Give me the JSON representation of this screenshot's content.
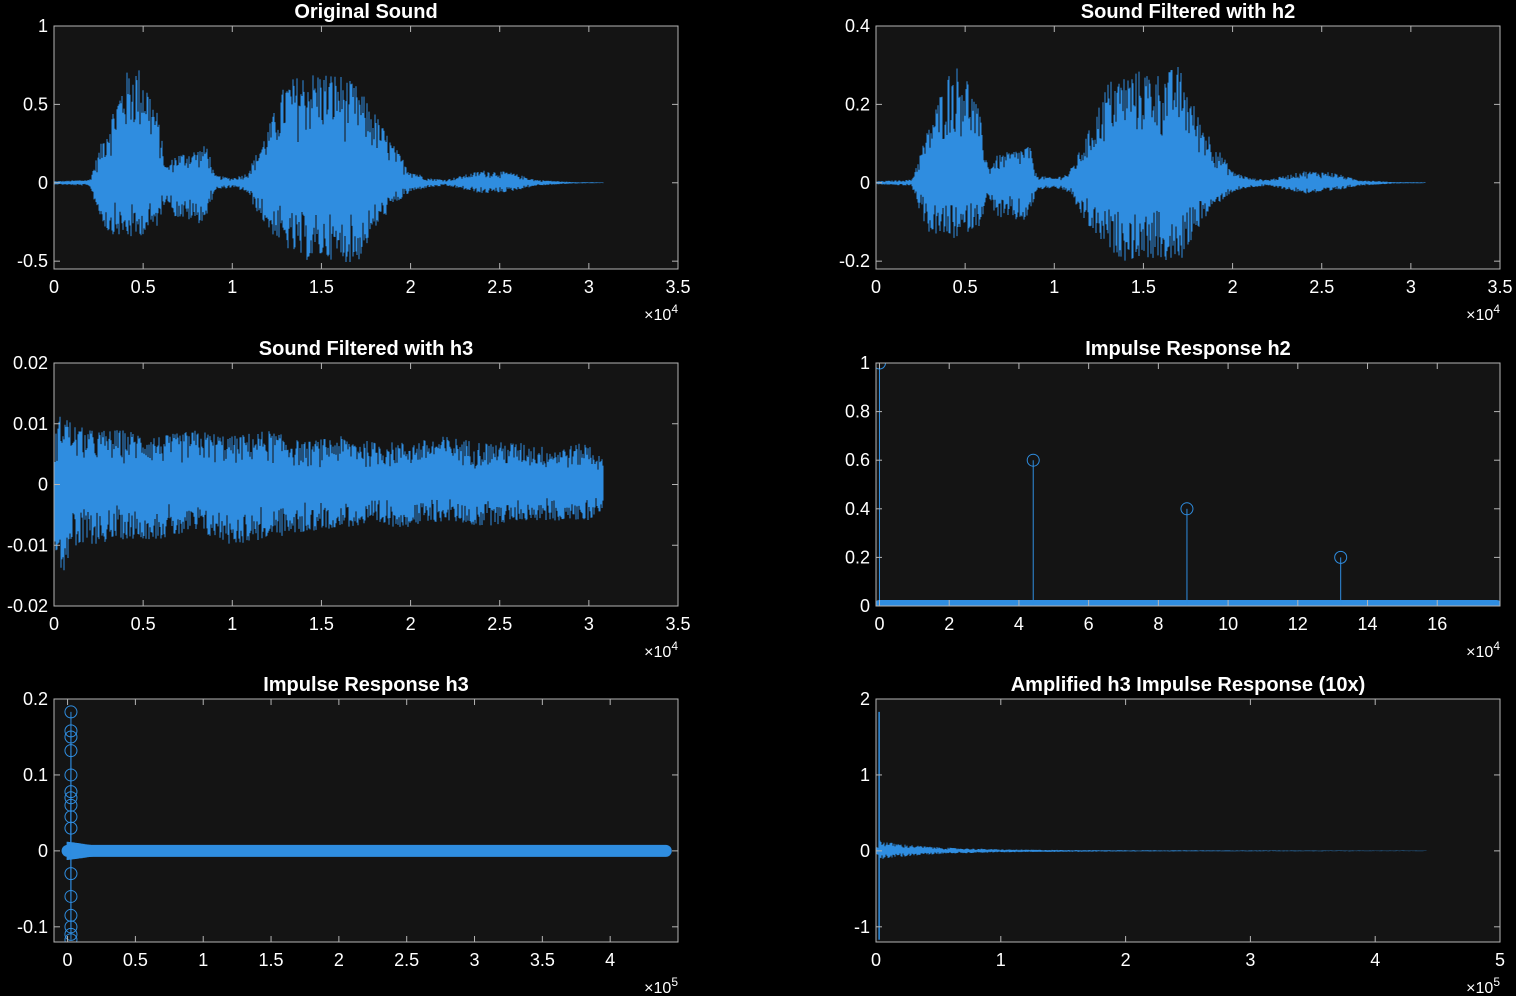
{
  "figure": {
    "background": "#000000",
    "axes_background": "#141414",
    "axes_color": "#b4b4b4",
    "line_color": "#2f8de0"
  },
  "chart_data": [
    {
      "type": "line",
      "title": "Original Sound",
      "xlabel": "",
      "ylabel": "",
      "xlim": [
        0,
        35000
      ],
      "ylim": [
        -0.55,
        1
      ],
      "x_ticks": [
        0,
        5000,
        10000,
        15000,
        20000,
        25000,
        30000,
        35000
      ],
      "x_tick_labels": [
        "0",
        "0.5",
        "1",
        "1.5",
        "2",
        "2.5",
        "3",
        "3.5"
      ],
      "x_exponent_label": "×10",
      "x_exponent": "4",
      "y_ticks": [
        -0.5,
        0,
        0.5,
        1
      ],
      "y_tick_labels": [
        "-0.5",
        "0",
        "0.5",
        "1"
      ],
      "grid": false,
      "series": [
        {
          "kind": "waveform",
          "x_end": 30800,
          "envelope_x": [
            0,
            2000,
            2500,
            3000,
            4000,
            4500,
            5000,
            5800,
            6300,
            6800,
            7500,
            8200,
            8600,
            9000,
            10000,
            10800,
            11200,
            12000,
            13000,
            14000,
            15000,
            16000,
            17000,
            18000,
            19000,
            20000,
            21000,
            22000,
            24000,
            25500,
            27000,
            29000,
            30800
          ],
          "envelope_upper": [
            0.01,
            0.02,
            0.2,
            0.38,
            0.7,
            0.76,
            0.72,
            0.45,
            0.1,
            0.18,
            0.2,
            0.22,
            0.25,
            0.05,
            0.03,
            0.06,
            0.15,
            0.35,
            0.65,
            0.7,
            0.72,
            0.7,
            0.62,
            0.45,
            0.25,
            0.08,
            0.03,
            0.02,
            0.08,
            0.07,
            0.02,
            0.005,
            0.002
          ],
          "envelope_lower": [
            -0.01,
            -0.02,
            -0.2,
            -0.32,
            -0.35,
            -0.36,
            -0.33,
            -0.28,
            -0.1,
            -0.22,
            -0.24,
            -0.26,
            -0.22,
            -0.05,
            -0.03,
            -0.06,
            -0.15,
            -0.3,
            -0.42,
            -0.5,
            -0.48,
            -0.5,
            -0.52,
            -0.3,
            -0.15,
            -0.06,
            -0.03,
            -0.02,
            -0.07,
            -0.06,
            -0.02,
            -0.005,
            -0.002
          ]
        }
      ]
    },
    {
      "type": "line",
      "title": "Sound Filtered with h2",
      "xlabel": "",
      "ylabel": "",
      "xlim": [
        0,
        35000
      ],
      "ylim": [
        -0.22,
        0.4
      ],
      "x_ticks": [
        0,
        5000,
        10000,
        15000,
        20000,
        25000,
        30000,
        35000
      ],
      "x_tick_labels": [
        "0",
        "0.5",
        "1",
        "1.5",
        "2",
        "2.5",
        "3",
        "3.5"
      ],
      "x_exponent_label": "×10",
      "x_exponent": "4",
      "y_ticks": [
        -0.2,
        0,
        0.2,
        0.4
      ],
      "y_tick_labels": [
        "-0.2",
        "0",
        "0.2",
        "0.4"
      ],
      "grid": false,
      "series": [
        {
          "kind": "waveform",
          "x_end": 30800,
          "envelope_x": [
            0,
            2000,
            2500,
            3000,
            4000,
            4500,
            5000,
            5800,
            6300,
            6800,
            7500,
            8200,
            8600,
            9000,
            10000,
            10800,
            11200,
            12000,
            13000,
            14000,
            15000,
            16000,
            17000,
            18000,
            19000,
            20000,
            21000,
            22000,
            24000,
            25500,
            27000,
            29000,
            30800
          ],
          "envelope_upper": [
            0.004,
            0.008,
            0.08,
            0.15,
            0.28,
            0.3,
            0.29,
            0.18,
            0.04,
            0.07,
            0.08,
            0.09,
            0.1,
            0.02,
            0.012,
            0.025,
            0.06,
            0.14,
            0.26,
            0.28,
            0.29,
            0.28,
            0.3,
            0.18,
            0.1,
            0.03,
            0.012,
            0.008,
            0.03,
            0.028,
            0.008,
            0.002,
            0.001
          ],
          "envelope_lower": [
            -0.004,
            -0.008,
            -0.08,
            -0.13,
            -0.14,
            -0.145,
            -0.13,
            -0.11,
            -0.04,
            -0.09,
            -0.095,
            -0.1,
            -0.09,
            -0.02,
            -0.012,
            -0.025,
            -0.06,
            -0.12,
            -0.17,
            -0.2,
            -0.19,
            -0.2,
            -0.21,
            -0.12,
            -0.06,
            -0.024,
            -0.012,
            -0.008,
            -0.028,
            -0.024,
            -0.008,
            -0.002,
            -0.001
          ]
        }
      ]
    },
    {
      "type": "line",
      "title": "Sound Filtered with h3",
      "xlabel": "",
      "ylabel": "",
      "xlim": [
        0,
        35000
      ],
      "ylim": [
        -0.02,
        0.02
      ],
      "x_ticks": [
        0,
        5000,
        10000,
        15000,
        20000,
        25000,
        30000,
        35000
      ],
      "x_tick_labels": [
        "0",
        "0.5",
        "1",
        "1.5",
        "2",
        "2.5",
        "3",
        "3.5"
      ],
      "x_exponent_label": "×10",
      "x_exponent": "4",
      "y_ticks": [
        -0.02,
        -0.01,
        0,
        0.01,
        0.02
      ],
      "y_tick_labels": [
        "-0.02",
        "-0.01",
        "0",
        "0.01",
        "0.02"
      ],
      "grid": false,
      "series": [
        {
          "kind": "waveform",
          "x_end": 30800,
          "envelope_x": [
            0,
            500,
            1000,
            2000,
            4000,
            6000,
            8000,
            10000,
            12000,
            14000,
            16000,
            18000,
            20000,
            22000,
            24000,
            26000,
            28000,
            30000,
            30800
          ],
          "envelope_upper": [
            0.008,
            0.013,
            0.01,
            0.009,
            0.009,
            0.008,
            0.009,
            0.008,
            0.009,
            0.007,
            0.008,
            0.007,
            0.007,
            0.008,
            0.007,
            0.007,
            0.006,
            0.007,
            0.004
          ],
          "envelope_lower": [
            -0.01,
            -0.015,
            -0.011,
            -0.01,
            -0.009,
            -0.009,
            -0.008,
            -0.01,
            -0.009,
            -0.008,
            -0.007,
            -0.007,
            -0.007,
            -0.006,
            -0.007,
            -0.006,
            -0.006,
            -0.006,
            -0.004
          ]
        }
      ]
    },
    {
      "type": "stem",
      "title": "Impulse Response h2",
      "xlabel": "",
      "ylabel": "",
      "xlim": [
        -1000,
        178000
      ],
      "ylim": [
        0,
        1
      ],
      "x_ticks": [
        0,
        20000,
        40000,
        60000,
        80000,
        100000,
        120000,
        140000,
        160000
      ],
      "x_tick_labels": [
        "0",
        "2",
        "4",
        "6",
        "8",
        "10",
        "12",
        "14",
        "16"
      ],
      "x_exponent_label": "×10",
      "x_exponent": "4",
      "y_ticks": [
        0,
        0.2,
        0.4,
        0.6,
        0.8,
        1
      ],
      "y_tick_labels": [
        "0",
        "0.2",
        "0.4",
        "0.6",
        "0.8",
        "1"
      ],
      "grid": false,
      "series": [
        {
          "kind": "stem",
          "x": [
            0,
            44100,
            88200,
            132300
          ],
          "y": [
            1,
            0.6,
            0.4,
            0.2
          ],
          "zero_band_x": [
            0,
            177000
          ]
        }
      ]
    },
    {
      "type": "stem",
      "title": "Impulse Response h3",
      "xlabel": "",
      "ylabel": "",
      "xlim": [
        -10000,
        450000
      ],
      "ylim": [
        -0.12,
        0.2
      ],
      "x_ticks": [
        0,
        50000,
        100000,
        150000,
        200000,
        250000,
        300000,
        350000,
        400000
      ],
      "x_tick_labels": [
        "0",
        "0.5",
        "1",
        "1.5",
        "2",
        "2.5",
        "3",
        "3.5",
        "4"
      ],
      "x_exponent_label": "×10",
      "x_exponent": "5",
      "y_ticks": [
        -0.1,
        0,
        0.1,
        0.2
      ],
      "y_tick_labels": [
        "-0.1",
        "0",
        "0.1",
        "0.2"
      ],
      "grid": false,
      "series": [
        {
          "kind": "stem",
          "x": [
            2500,
            2500,
            2500,
            2500,
            2500,
            2500,
            2500,
            2500,
            2500,
            2500,
            2500,
            2500,
            2500,
            2500,
            2500,
            2500
          ],
          "y": [
            0.183,
            0.158,
            0.15,
            0.132,
            0.1,
            0.078,
            0.07,
            0.06,
            0.045,
            0.03,
            -0.03,
            -0.06,
            -0.085,
            -0.1,
            -0.11,
            -0.117
          ],
          "zero_band_x": [
            0,
            441000
          ],
          "decay_x": [
            0,
            5000,
            20000,
            60000,
            120000,
            441000
          ],
          "decay_amp": [
            0.012,
            0.011,
            0.007,
            0.005,
            0.004,
            0.003
          ]
        }
      ]
    },
    {
      "type": "line",
      "title": "Amplified h3 Impulse Response (10x)",
      "xlabel": "",
      "ylabel": "",
      "xlim": [
        0,
        500000
      ],
      "ylim": [
        -1.2,
        2
      ],
      "x_ticks": [
        0,
        100000,
        200000,
        300000,
        400000,
        500000
      ],
      "x_tick_labels": [
        "0",
        "1",
        "2",
        "3",
        "4",
        "5"
      ],
      "x_exponent_label": "×10",
      "x_exponent": "5",
      "y_ticks": [
        -1,
        0,
        1,
        2
      ],
      "y_tick_labels": [
        "-1",
        "0",
        "1",
        "2"
      ],
      "grid": false,
      "series": [
        {
          "kind": "waveform",
          "x_end": 441000,
          "spikes": [
            [
              2500,
              1.83
            ],
            [
              2500,
              -1.17
            ]
          ],
          "envelope_x": [
            0,
            3000,
            8000,
            20000,
            40000,
            60000,
            100000,
            150000,
            200000,
            300000,
            441000
          ],
          "envelope_upper": [
            0.02,
            0.15,
            0.12,
            0.09,
            0.06,
            0.04,
            0.02,
            0.012,
            0.008,
            0.005,
            0.003
          ],
          "envelope_lower": [
            -0.02,
            -0.12,
            -0.1,
            -0.08,
            -0.05,
            -0.035,
            -0.02,
            -0.012,
            -0.008,
            -0.005,
            -0.003
          ]
        }
      ]
    }
  ]
}
